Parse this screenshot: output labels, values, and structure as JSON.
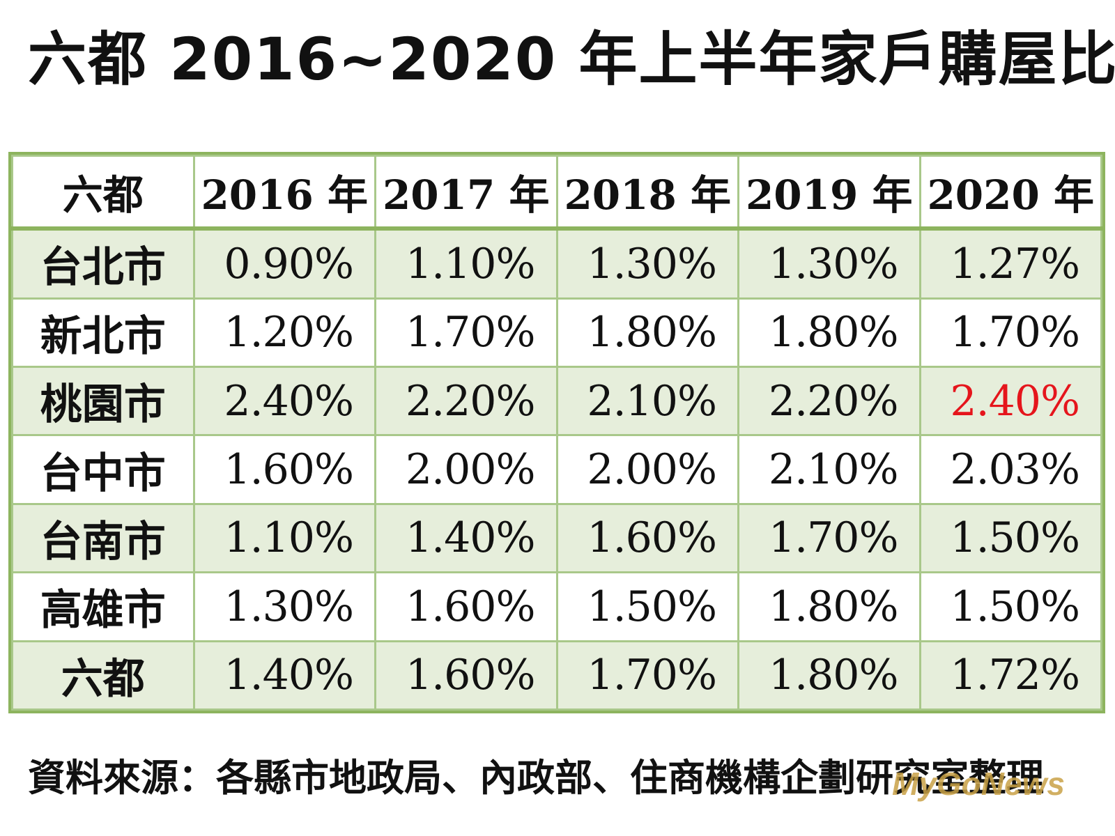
{
  "chart_data": {
    "type": "table",
    "title": "六都 2016~2020 年上半年家戶購屋比",
    "columns": [
      "六都",
      "2016 年",
      "2017 年",
      "2018 年",
      "2019 年",
      "2020 年"
    ],
    "rows": [
      {
        "city": "台北市",
        "values": [
          "0.90%",
          "1.10%",
          "1.30%",
          "1.30%",
          "1.27%"
        ]
      },
      {
        "city": "新北市",
        "values": [
          "1.20%",
          "1.70%",
          "1.80%",
          "1.80%",
          "1.70%"
        ]
      },
      {
        "city": "桃園市",
        "values": [
          "2.40%",
          "2.20%",
          "2.10%",
          "2.20%",
          "2.40%"
        ]
      },
      {
        "city": "台中市",
        "values": [
          "1.60%",
          "2.00%",
          "2.00%",
          "2.10%",
          "2.03%"
        ]
      },
      {
        "city": "台南市",
        "values": [
          "1.10%",
          "1.40%",
          "1.60%",
          "1.70%",
          "1.50%"
        ]
      },
      {
        "city": "高雄市",
        "values": [
          "1.30%",
          "1.60%",
          "1.50%",
          "1.80%",
          "1.50%"
        ]
      },
      {
        "city": "六都",
        "values": [
          "1.40%",
          "1.60%",
          "1.70%",
          "1.80%",
          "1.72%"
        ]
      }
    ],
    "highlight": {
      "row": 2,
      "col": 4,
      "color": "#e5151c"
    }
  },
  "source": "資料來源：各縣市地政局、內政部、住商機構企劃研究室整理",
  "watermark": "MyGoNews",
  "colors": {
    "border": "#8db45e",
    "shade": "#e6eedb",
    "highlight": "#e5151c"
  }
}
